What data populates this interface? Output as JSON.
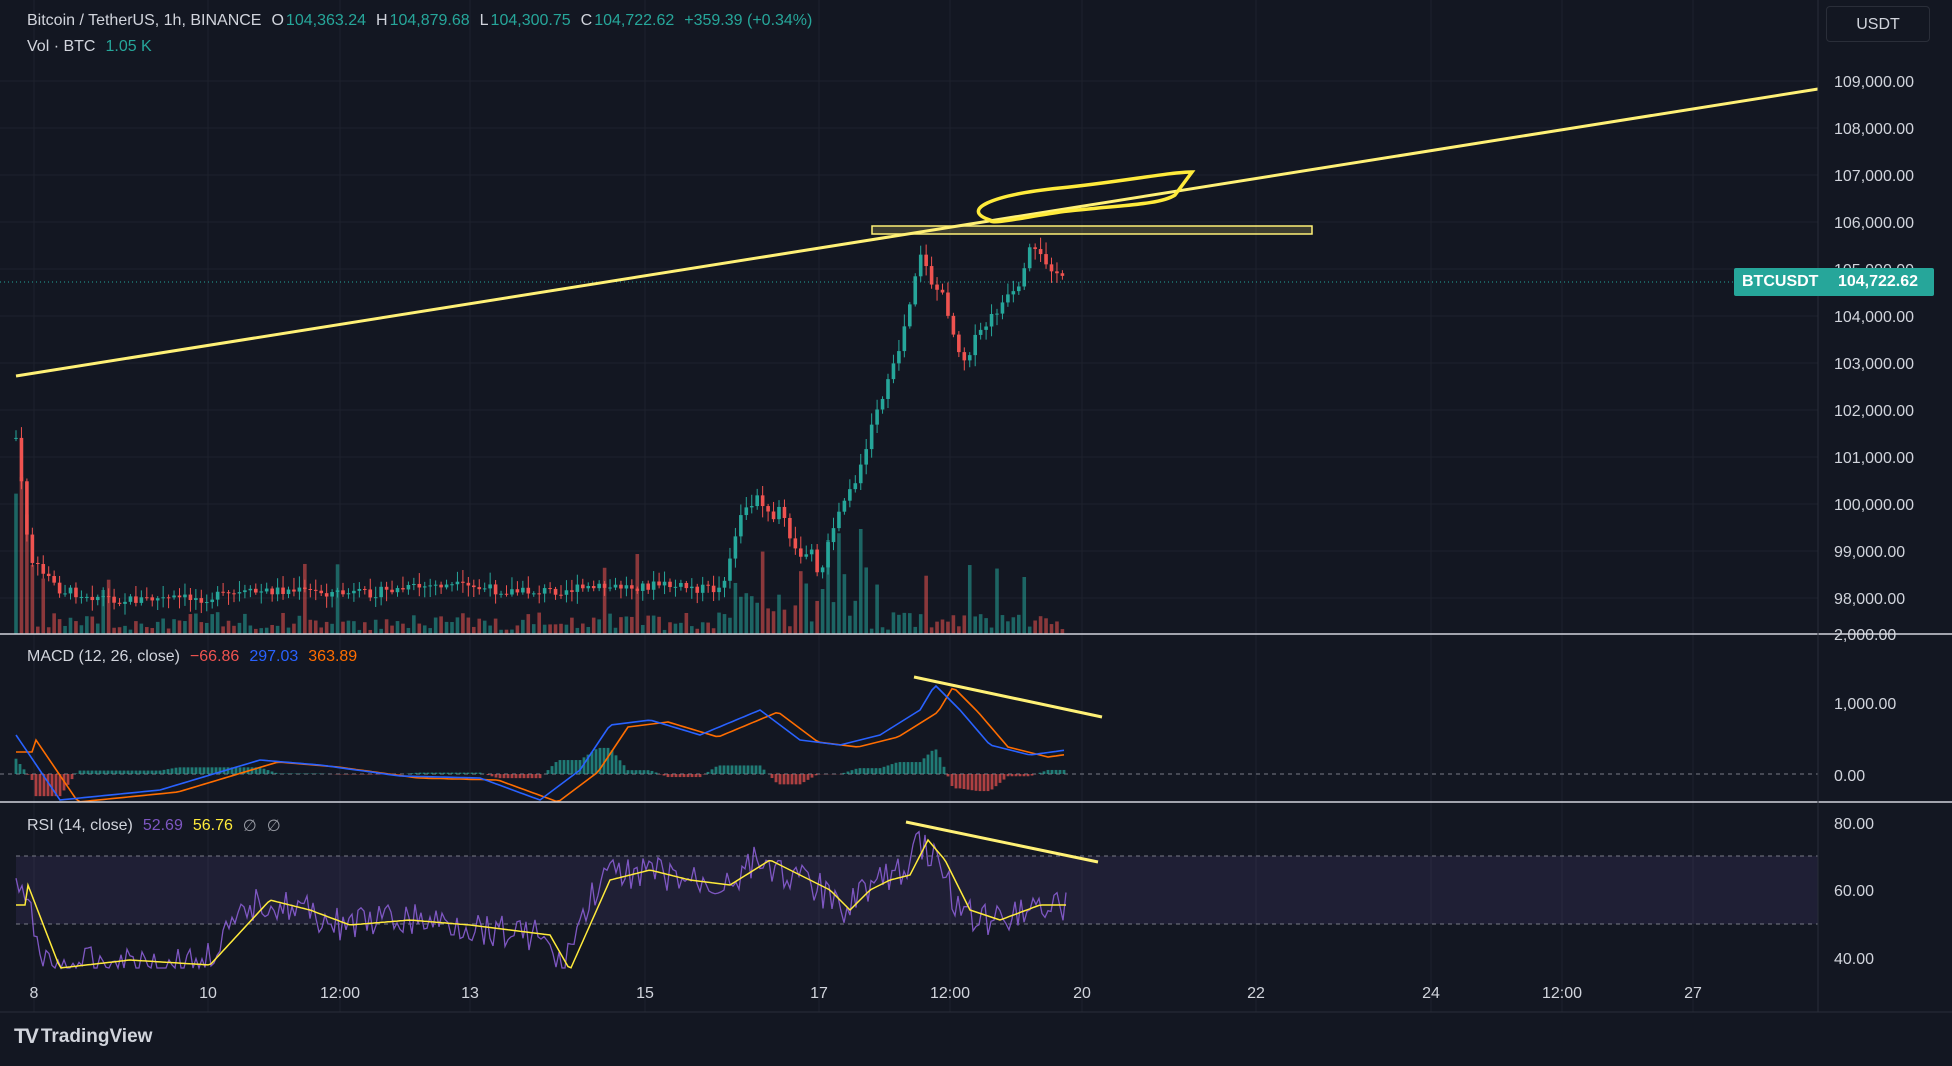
{
  "header": {
    "symbol_title": "Bitcoin / TetherUS, 1h, BINANCE",
    "ohlc": {
      "open_label": "O",
      "open": "104,363.24",
      "high_label": "H",
      "high": "104,879.68",
      "low_label": "L",
      "low": "104,300.75",
      "close_label": "C",
      "close": "104,722.62",
      "change": "+359.39 (+0.34%)"
    },
    "volume_label": "Vol · BTC",
    "volume_value": "1.05 K"
  },
  "currency_selector": "USDT",
  "price_scale": {
    "labels": [
      "109,000.00",
      "108,000.00",
      "107,000.00",
      "106,000.00",
      "105,000.00",
      "104,000.00",
      "103,000.00",
      "102,000.00",
      "101,000.00",
      "100,000.00",
      "99,000.00",
      "98,000.00"
    ],
    "symbol_tag": "BTCUSDT",
    "last_price": "104,722.62",
    "cut_label": "2,000.00"
  },
  "macd": {
    "title": "MACD (12, 26, close)",
    "hist_value": "−66.86",
    "macd_value": "297.03",
    "signal_value": "363.89",
    "scale_labels": [
      "1,000.00",
      "0.00"
    ]
  },
  "rsi": {
    "title": "RSI (14, close)",
    "rsi_value": "52.69",
    "ma_value": "56.76",
    "extra1": "∅",
    "extra2": "∅",
    "scale_labels": [
      "80.00",
      "60.00",
      "40.00"
    ]
  },
  "time_axis": [
    "8",
    "10",
    "12:00",
    "13",
    "15",
    "17",
    "12:00",
    "20",
    "22",
    "24",
    "12:00",
    "27"
  ],
  "branding": "TradingView",
  "colors": {
    "background": "#131722",
    "up": "#26a69a",
    "down": "#ef5350",
    "macd_line": "#2962ff",
    "signal_line": "#ff6d00",
    "rsi_line": "#7e57c2",
    "rsi_ma": "#ffeb3b",
    "drawing": "#fff176"
  }
}
